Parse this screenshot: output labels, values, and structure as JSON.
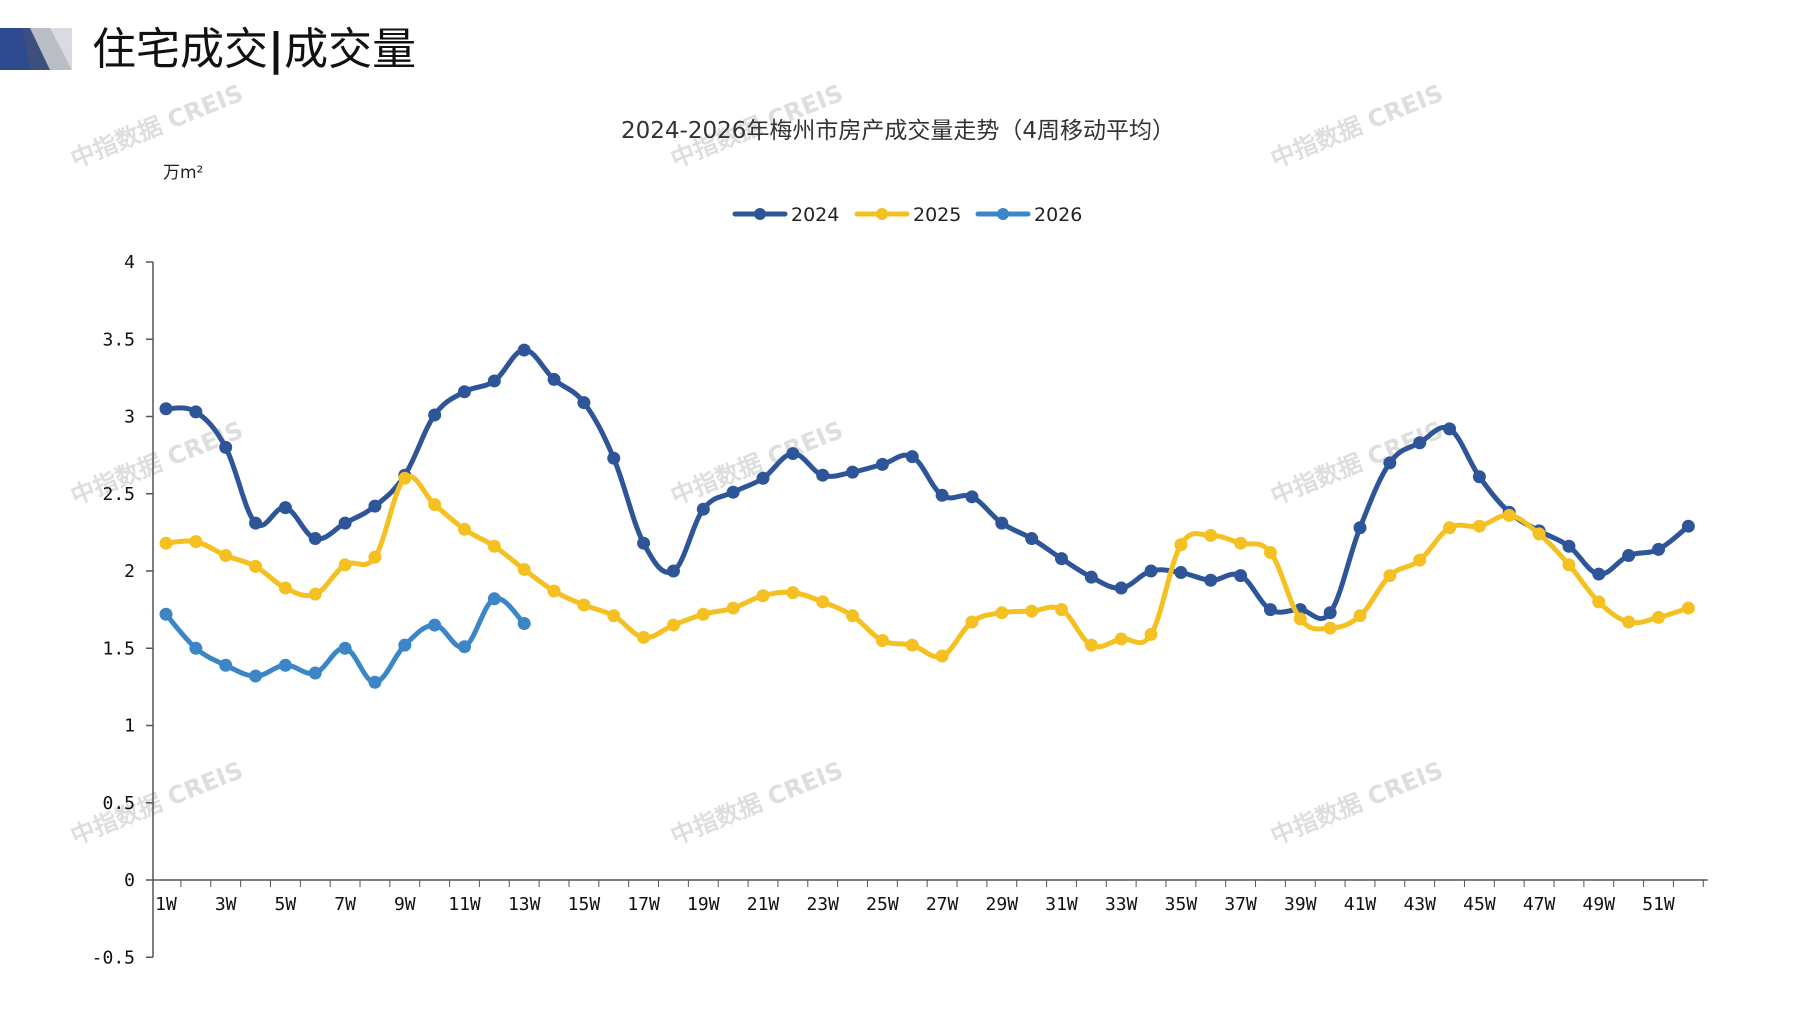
{
  "header": {
    "title": "住宅成交",
    "separator": "|",
    "subtitle": "成交量"
  },
  "watermark": "中指数据 CREIS",
  "chart_data": {
    "type": "line",
    "title": "2024-2026年梅州市房产成交量走势（4周移动平均）",
    "ylabel": "万m²",
    "xlabel": "",
    "ylim": [
      -0.5,
      4
    ],
    "yticks": [
      -0.5,
      0,
      0.5,
      1,
      1.5,
      2,
      2.5,
      3,
      3.5,
      4
    ],
    "ytick_labels": [
      "-0.5",
      "0",
      "0.5",
      "1",
      "1.5",
      "2",
      "2.5",
      "3",
      "3.5",
      "4"
    ],
    "x_count": 52,
    "xtick_labels": [
      "1W",
      "3W",
      "5W",
      "7W",
      "9W",
      "11W",
      "13W",
      "15W",
      "17W",
      "19W",
      "21W",
      "23W",
      "25W",
      "27W",
      "29W",
      "31W",
      "33W",
      "35W",
      "37W",
      "39W",
      "41W",
      "43W",
      "45W",
      "47W",
      "49W",
      "51W"
    ],
    "legend": {
      "position": "top-center"
    },
    "grid": false,
    "series": [
      {
        "name": "2024",
        "color": "#2e5597",
        "values": [
          3.05,
          3.03,
          2.8,
          2.31,
          2.41,
          2.21,
          2.31,
          2.42,
          2.62,
          3.01,
          3.16,
          3.23,
          3.43,
          3.24,
          3.09,
          2.73,
          2.18,
          2.0,
          2.4,
          2.51,
          2.6,
          2.76,
          2.62,
          2.64,
          2.69,
          2.74,
          2.49,
          2.48,
          2.31,
          2.21,
          2.08,
          1.96,
          1.89,
          2.0,
          1.99,
          1.94,
          1.97,
          1.75,
          1.75,
          1.73,
          2.28,
          2.7,
          2.83,
          2.92,
          2.61,
          2.38,
          2.26,
          2.16,
          1.98,
          2.1,
          2.14,
          2.29
        ]
      },
      {
        "name": "2025",
        "color": "#f5c021",
        "values": [
          2.18,
          2.19,
          2.1,
          2.03,
          1.89,
          1.85,
          2.04,
          2.09,
          2.6,
          2.43,
          2.27,
          2.16,
          2.01,
          1.87,
          1.78,
          1.71,
          1.57,
          1.65,
          1.72,
          1.76,
          1.84,
          1.86,
          1.8,
          1.71,
          1.55,
          1.52,
          1.45,
          1.67,
          1.73,
          1.74,
          1.75,
          1.52,
          1.56,
          1.59,
          2.17,
          2.23,
          2.18,
          2.12,
          1.69,
          1.63,
          1.71,
          1.97,
          2.07,
          2.28,
          2.29,
          2.36,
          2.24,
          2.04,
          1.8,
          1.67,
          1.7,
          1.76
        ]
      },
      {
        "name": "2026",
        "color": "#3c86c8",
        "values": [
          1.72,
          1.5,
          1.39,
          1.32,
          1.39,
          1.34,
          1.5,
          1.28,
          1.52,
          1.65,
          1.51,
          1.82,
          1.66
        ]
      }
    ]
  }
}
